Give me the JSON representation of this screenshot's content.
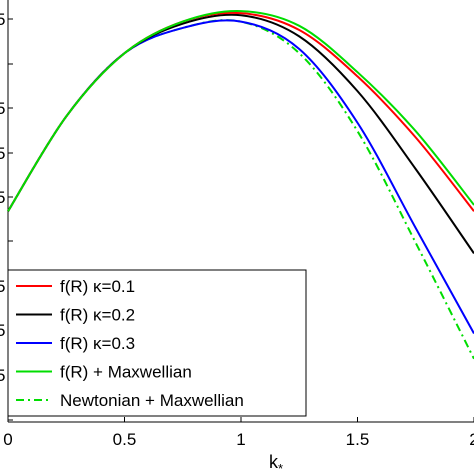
{
  "chart_data": {
    "type": "line",
    "title": "",
    "xlabel": "k",
    "xlabel_subscript": "*",
    "ylabel": "",
    "xlim": [
      0,
      2
    ],
    "x_ticks": [
      0,
      0.5,
      1,
      1.5,
      2
    ],
    "x_tick_labels": [
      "0",
      "0.5",
      "1",
      "1.5",
      "2"
    ],
    "y_tick_labels_partial": [
      "5",
      "5",
      "5",
      "5",
      "5",
      "5",
      "5"
    ],
    "grid": false,
    "legend_position": "bottom-left",
    "series": [
      {
        "name": "f(R) κ=0.1",
        "color": "#ff0000",
        "style": "solid",
        "x": [
          0,
          0.25,
          0.5,
          0.75,
          1.0,
          1.25,
          1.5,
          1.75,
          2.0
        ],
        "y": [
          0,
          0.45,
          0.75,
          0.9,
          0.94,
          0.86,
          0.64,
          0.35,
          0.0
        ]
      },
      {
        "name": "f(R) κ=0.2",
        "color": "#000000",
        "style": "solid",
        "x": [
          0,
          0.25,
          0.5,
          0.75,
          1.0,
          1.25,
          1.5,
          1.75,
          2.0
        ],
        "y": [
          0,
          0.45,
          0.75,
          0.89,
          0.93,
          0.83,
          0.57,
          0.2,
          -0.2
        ]
      },
      {
        "name": "f(R) κ=0.3",
        "color": "#0000ff",
        "style": "solid",
        "x": [
          0,
          0.25,
          0.5,
          0.75,
          1.0,
          1.25,
          1.5,
          1.75,
          2.0
        ],
        "y": [
          0,
          0.45,
          0.75,
          0.87,
          0.9,
          0.77,
          0.42,
          -0.08,
          -0.58
        ]
      },
      {
        "name": "f(R) + Maxwellian",
        "color": "#00dd00",
        "style": "solid",
        "x": [
          0,
          0.25,
          0.5,
          0.75,
          1.0,
          1.25,
          1.5,
          1.75,
          2.0
        ],
        "y": [
          0,
          0.45,
          0.75,
          0.9,
          0.95,
          0.88,
          0.66,
          0.38,
          0.03
        ]
      },
      {
        "name": "Newtonian + Maxwellian",
        "color": "#00dd00",
        "style": "dashdot",
        "x": [
          0,
          0.25,
          0.5,
          0.75,
          1.0,
          1.25,
          1.5,
          1.75,
          2.0
        ],
        "y": [
          0,
          0.45,
          0.75,
          0.87,
          0.9,
          0.75,
          0.38,
          -0.15,
          -0.7
        ]
      }
    ]
  }
}
